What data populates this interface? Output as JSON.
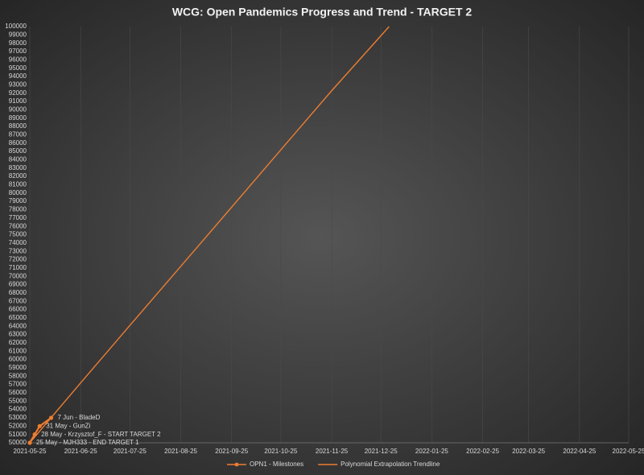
{
  "chart_data": {
    "type": "line",
    "title": "WCG: Open Pandemics Progress and Trend - TARGET 2",
    "xlim": [
      "2021-05-25",
      "2022-05-25"
    ],
    "xticks": [
      "2021-05-25",
      "2021-06-25",
      "2021-07-25",
      "2021-08-25",
      "2021-09-25",
      "2021-10-25",
      "2021-11-25",
      "2021-12-25",
      "2022-01-25",
      "2022-02-25",
      "2022-03-25",
      "2022-04-25",
      "2022-05-25"
    ],
    "ylim": [
      50000,
      100000
    ],
    "yticks": [
      50000,
      51000,
      52000,
      53000,
      54000,
      55000,
      56000,
      57000,
      58000,
      59000,
      60000,
      61000,
      62000,
      63000,
      64000,
      65000,
      66000,
      67000,
      68000,
      69000,
      70000,
      71000,
      72000,
      73000,
      74000,
      75000,
      76000,
      77000,
      78000,
      79000,
      80000,
      81000,
      82000,
      83000,
      84000,
      85000,
      86000,
      87000,
      88000,
      89000,
      90000,
      91000,
      92000,
      93000,
      94000,
      95000,
      96000,
      97000,
      98000,
      99000,
      100000
    ],
    "grid": "x",
    "legend": "bottom",
    "series": [
      {
        "name": "OPN1 - Milestones",
        "color": "#ed7d31",
        "markers": true,
        "x": [
          "2021-05-25",
          "2021-05-28",
          "2021-05-31",
          "2021-06-07"
        ],
        "values": [
          50000,
          51000,
          52000,
          53000
        ],
        "point_labels": [
          "25 May - MJH333 - END TARGET 1",
          "28 May - Krzysztof_F - START TARGET 2",
          "31 May - GunZi",
          "7 Jun - BladeD"
        ]
      },
      {
        "name": "Polynomial Extrapolation Trendline",
        "color": "#ed7d31",
        "markers": false,
        "x": [
          "2021-05-25",
          "2021-06-25",
          "2021-07-25",
          "2021-08-25",
          "2021-09-25",
          "2021-10-25",
          "2021-11-25",
          "2021-12-30"
        ],
        "values": [
          50000,
          57200,
          64100,
          71200,
          78300,
          85200,
          92300,
          100000
        ]
      }
    ]
  }
}
